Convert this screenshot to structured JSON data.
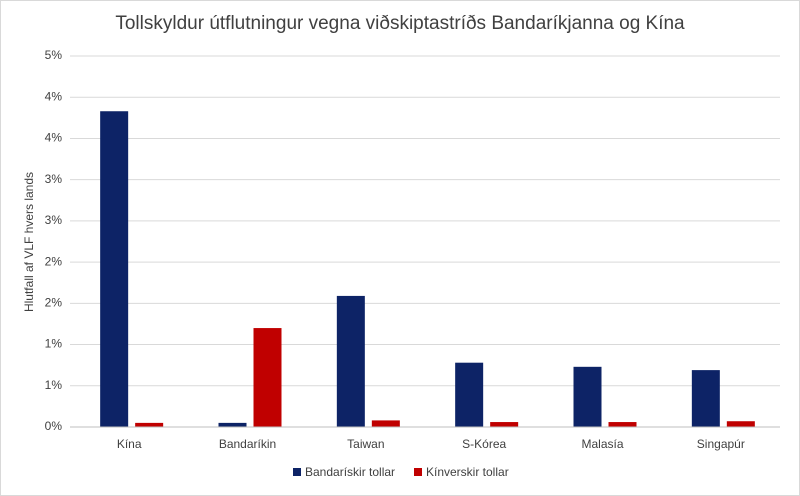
{
  "chart_data": {
    "type": "bar",
    "title": "Tollskyldur útflutningur vegna viðskiptastríðs Bandaríkjanna og Kína",
    "y_label": "Hlutfall af VLF hvers lands",
    "categories": [
      "Kína",
      "Bandaríkin",
      "Taiwan",
      "S-Kórea",
      "Malasía",
      "Singapúr"
    ],
    "series": [
      {
        "name": "Bandarískir tollar",
        "color": "#0d2366",
        "values": [
          3.83,
          0.05,
          1.59,
          0.78,
          0.73,
          0.69
        ]
      },
      {
        "name": "Kínverskir tollar",
        "color": "#c00000",
        "values": [
          0.05,
          1.2,
          0.08,
          0.06,
          0.06,
          0.07
        ]
      }
    ],
    "ylim": [
      0,
      4.5
    ],
    "yticks": [
      {
        "value": 0,
        "label": "0%"
      },
      {
        "value": 0.5,
        "label": "1%"
      },
      {
        "value": 1,
        "label": "1%"
      },
      {
        "value": 1.5,
        "label": "2%"
      },
      {
        "value": 2,
        "label": "2%"
      },
      {
        "value": 2.5,
        "label": "3%"
      },
      {
        "value": 3,
        "label": "3%"
      },
      {
        "value": 3.5,
        "label": "4%"
      },
      {
        "value": 4,
        "label": "4%"
      },
      {
        "value": 4.5,
        "label": "5%"
      }
    ],
    "grid": true,
    "legend": "bottom"
  }
}
